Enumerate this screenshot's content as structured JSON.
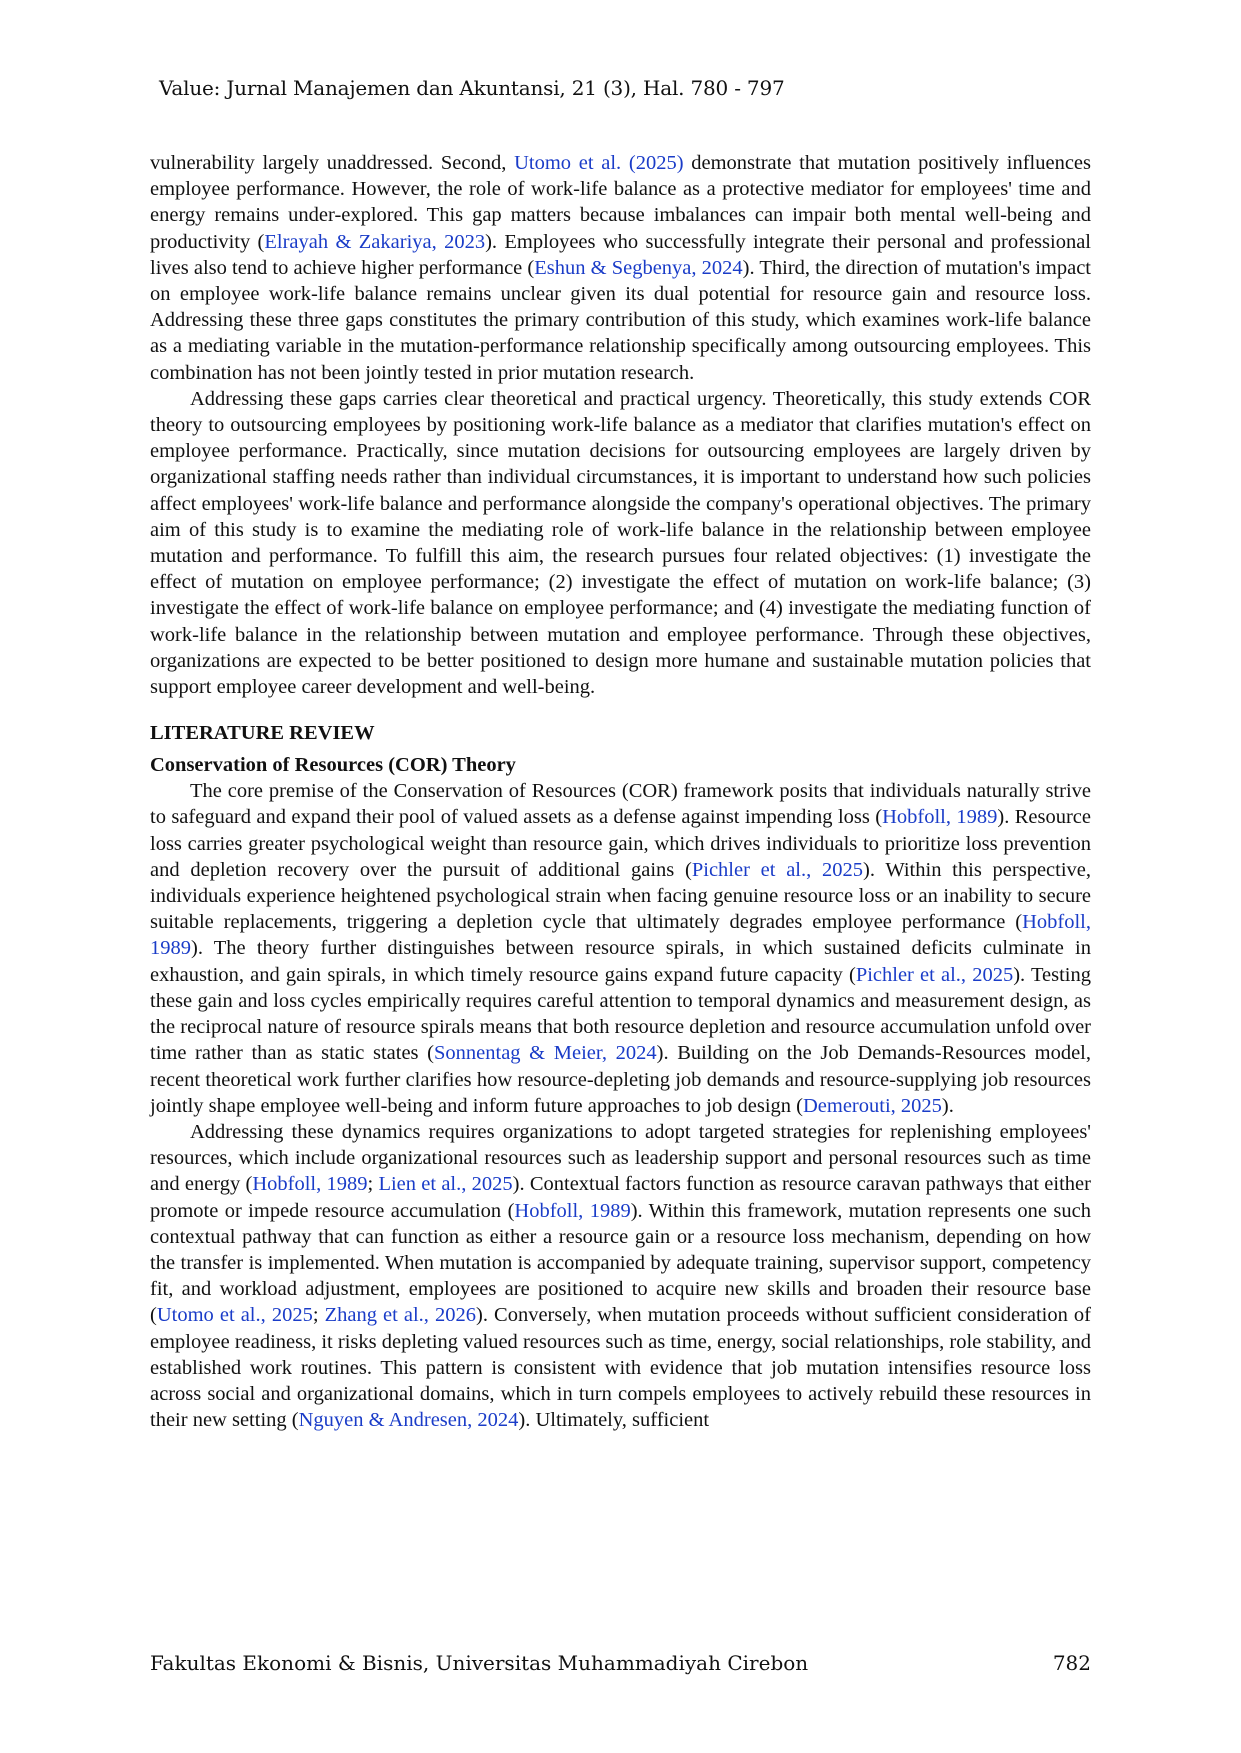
{
  "header": {
    "running_title": "Value: Jurnal Manajemen dan Akuntansi, 21 (3), Hal. 780 - 797"
  },
  "footer": {
    "institution": "Fakultas Ekonomi & Bisnis, Universitas Muhammadiyah Cirebon",
    "page_number": "782"
  },
  "colors": {
    "citation": "#1a3cc8",
    "text": "#111111"
  },
  "para1": {
    "t1": "vulnerability largely unaddressed. Second, ",
    "c1": "Utomo et al. (2025)",
    "t2": " demonstrate that mutation positively influences employee performance. However, the role of work-life balance as a protective mediator for employees' time and energy remains under-explored. This gap matters because imbalances can impair both mental well-being and productivity (",
    "c2": "Elrayah & Zakariya, 2023",
    "t3": "). Employees who successfully integrate their personal and professional lives also tend to achieve higher performance (",
    "c3": "Eshun & Segbenya, 2024",
    "t4": "). Third, the direction of mutation's impact on employee work-life balance remains unclear given its dual potential for resource gain and resource loss. Addressing these three gaps constitutes the primary contribution of this study, which examines work-life balance as a mediating variable in the mutation-performance relationship specifically among outsourcing employees. This combination has not been jointly tested in prior mutation research."
  },
  "para2": {
    "text": "Addressing these gaps carries clear theoretical and practical urgency. Theoretically, this study extends COR theory to outsourcing employees by positioning work-life balance as a mediator that clarifies mutation's effect on employee performance. Practically, since mutation decisions for outsourcing employees are largely driven by organizational staffing needs rather than individual circumstances, it is important to understand how such policies affect employees' work-life balance and performance alongside the company's operational objectives. The primary aim of this study is to examine the mediating role of work-life balance in the relationship between employee mutation and performance. To fulfill this aim, the research pursues four related objectives: (1) investigate the effect of mutation on employee performance; (2) investigate the effect of mutation on work-life balance; (3) investigate the effect of work-life balance on employee performance; and (4) investigate the mediating function of work-life balance in the relationship between mutation and employee performance. Through these objectives, organizations are expected to be better positioned to design more humane and sustainable mutation policies that support employee career development and well-being."
  },
  "section": {
    "title": "LITERATURE REVIEW",
    "subtitle": "Conservation of Resources (COR) Theory"
  },
  "para3": {
    "t1": "The core premise of the Conservation of Resources (COR) framework posits that individuals naturally strive to safeguard and expand their pool of valued assets as a defense against impending loss (",
    "c1": "Hobfoll, 1989",
    "t2": "). Resource loss carries greater psychological weight than resource gain, which drives individuals to prioritize loss prevention and depletion recovery over the pursuit of additional gains (",
    "c2": "Pichler et al., 2025",
    "t3": "). Within this perspective, individuals experience heightened psychological strain when facing genuine resource loss or an inability to secure suitable replacements, triggering a depletion cycle that ultimately degrades employee performance (",
    "c3": "Hobfoll, 1989",
    "t4": "). The theory further distinguishes between resource spirals, in which sustained deficits culminate in exhaustion, and gain spirals, in which timely resource gains expand future capacity (",
    "c4": "Pichler et al., 2025",
    "t5": "). Testing these gain and loss cycles empirically requires careful attention to temporal dynamics and measurement design, as the reciprocal nature of resource spirals means that both resource depletion and resource accumulation unfold over time rather than as static states (",
    "c5": "Sonnentag & Meier, 2024",
    "t6": "). Building on the Job Demands-Resources model, recent theoretical work further clarifies how resource-depleting job demands and resource-supplying job resources jointly shape employee well-being and inform future approaches to job design (",
    "c6": "Demerouti, 2025",
    "t7": ")."
  },
  "para4": {
    "t1": "Addressing these dynamics requires organizations to adopt targeted strategies for replenishing employees' resources, which include organizational resources such as leadership support and personal resources such as time and energy (",
    "c1": "Hobfoll, 1989",
    "t2": "; ",
    "c2": "Lien et al., 2025",
    "t3": "). Contextual factors function as resource caravan pathways that either promote or impede resource accumulation (",
    "c3": "Hobfoll, 1989",
    "t4": "). Within this framework, mutation represents one such contextual pathway that can function as either a resource gain or a resource loss mechanism, depending on how the transfer is implemented. When mutation is accompanied by adequate training, supervisor support, competency fit, and workload adjustment, employees are positioned to acquire new skills and broaden their resource base (",
    "c4": "Utomo et al., 2025",
    "t5": "; ",
    "c5": "Zhang et al., 2026",
    "t6": "). Conversely, when mutation proceeds without sufficient consideration of employee readiness, it risks depleting valued resources such as time, energy, social relationships, role stability, and established work routines. This pattern is consistent with evidence that job mutation intensifies resource loss across social and organizational domains, which in turn compels employees to actively rebuild these resources in their new setting (",
    "c6": "Nguyen & Andresen, 2024",
    "t7": "). Ultimately, sufficient"
  }
}
